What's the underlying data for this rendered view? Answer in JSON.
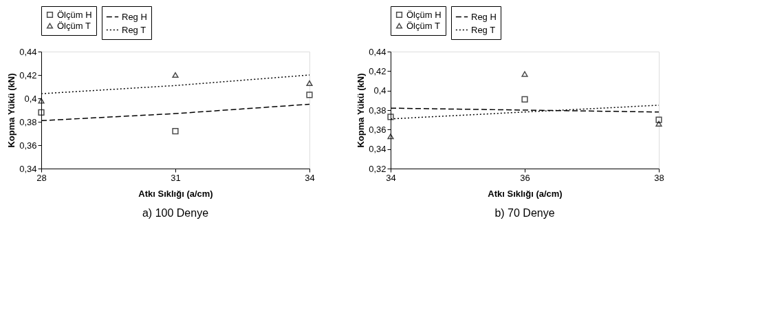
{
  "chart_data": [
    {
      "type": "scatter",
      "title": "a) 100 Denye",
      "xlabel": "Atkı Sıklığı (a/cm)",
      "ylabel": "Kopma Yükü (kN)",
      "x": [
        28,
        31,
        34
      ],
      "xlim": [
        28,
        34
      ],
      "xticks": [
        28,
        31,
        34
      ],
      "ylim": [
        0.34,
        0.44
      ],
      "yticks": [
        {
          "value": 0.34,
          "label": "0,34"
        },
        {
          "value": 0.36,
          "label": "0,36"
        },
        {
          "value": 0.38,
          "label": "0,38"
        },
        {
          "value": 0.4,
          "label": "0,4"
        },
        {
          "value": 0.42,
          "label": "0,42"
        },
        {
          "value": 0.44,
          "label": "0,44"
        }
      ],
      "grid": false,
      "legend": "top",
      "series": [
        {
          "name": "Ölçüm H",
          "marker": "square",
          "color": "#000000",
          "values": [
            0.388,
            0.372,
            0.403
          ]
        },
        {
          "name": "Ölçüm T",
          "marker": "triangle",
          "color": "#000000",
          "values": [
            0.398,
            0.42,
            0.413
          ]
        },
        {
          "name": "Reg H",
          "type": "line",
          "line_style": "dashed",
          "color": "#000000",
          "values": [
            0.381,
            0.387,
            0.395
          ]
        },
        {
          "name": "Reg T",
          "type": "line",
          "line_style": "dotted",
          "color": "#000000",
          "values": [
            0.404,
            0.411,
            0.42
          ]
        }
      ]
    },
    {
      "type": "scatter",
      "title": "b) 70 Denye",
      "xlabel": "Atkı Sıklığı (a/cm)",
      "ylabel": "Kopma Yükü (kN)",
      "x": [
        34,
        36,
        38
      ],
      "xlim": [
        34,
        38
      ],
      "xticks": [
        34,
        36,
        38
      ],
      "ylim": [
        0.32,
        0.44
      ],
      "yticks": [
        {
          "value": 0.32,
          "label": "0,32"
        },
        {
          "value": 0.34,
          "label": "0,34"
        },
        {
          "value": 0.36,
          "label": "0,36"
        },
        {
          "value": 0.38,
          "label": "0,38"
        },
        {
          "value": 0.4,
          "label": "0,4"
        },
        {
          "value": 0.42,
          "label": "0,42"
        },
        {
          "value": 0.44,
          "label": "0,44"
        }
      ],
      "grid": false,
      "legend": "top",
      "series": [
        {
          "name": "Ölçüm H",
          "marker": "square",
          "color": "#000000",
          "values": [
            0.373,
            0.391,
            0.37
          ]
        },
        {
          "name": "Ölçüm T",
          "marker": "triangle",
          "color": "#000000",
          "values": [
            0.353,
            0.417,
            0.366
          ]
        },
        {
          "name": "Reg H",
          "type": "line",
          "line_style": "dashed",
          "color": "#000000",
          "values": [
            0.382,
            0.38,
            0.378
          ]
        },
        {
          "name": "Reg T",
          "type": "line",
          "line_style": "dotted",
          "color": "#000000",
          "values": [
            0.371,
            0.378,
            0.385
          ]
        }
      ]
    }
  ]
}
